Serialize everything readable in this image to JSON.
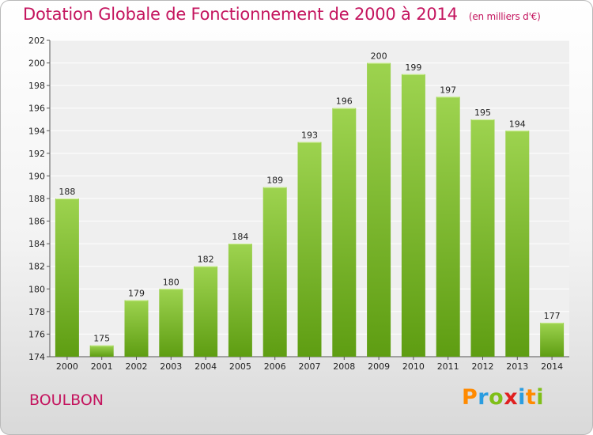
{
  "chart_data": {
    "type": "bar",
    "title": "Dotation Globale de Fonctionnement de 2000 à 2014",
    "unit": "(en milliers d'€)",
    "categories": [
      "2000",
      "2001",
      "2002",
      "2003",
      "2004",
      "2005",
      "2006",
      "2007",
      "2008",
      "2009",
      "2010",
      "2011",
      "2012",
      "2013",
      "2014"
    ],
    "values": [
      188,
      175,
      179,
      180,
      182,
      184,
      189,
      193,
      196,
      200,
      199,
      197,
      195,
      194,
      177
    ],
    "ylim": [
      174,
      202
    ],
    "yticks": [
      174,
      176,
      178,
      180,
      182,
      184,
      186,
      188,
      190,
      192,
      194,
      196,
      198,
      200,
      202
    ],
    "grid": true,
    "bar_color_top": "#9dd34f",
    "bar_color_bottom": "#5e9d12"
  },
  "footer": {
    "town": "BOULBON"
  },
  "logo": {
    "text": "Proxiti"
  }
}
